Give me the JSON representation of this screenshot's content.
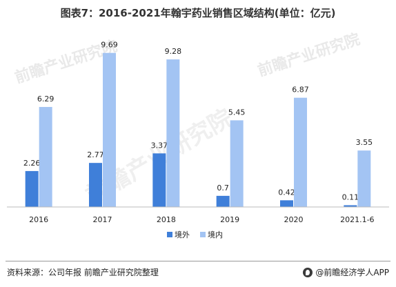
{
  "title": "图表7：2016-2021年翰宇药业销售区域结构(单位：亿元)",
  "watermark": "前瞻产业研究院",
  "watermark_big": "前瞻产业研究院",
  "footer": {
    "source": "资料来源：公司年报 前瞻产业研究院整理",
    "brand": "@前瞻经济学人APP"
  },
  "colors": {
    "series1": "#3f7fd9",
    "series2": "#a3c4f3"
  },
  "chart_data": {
    "type": "bar",
    "title": "图表7：2016-2021年翰宇药业销售区域结构(单位：亿元)",
    "categories": [
      "2016",
      "2017",
      "2018",
      "2019",
      "2020",
      "2021.1-6"
    ],
    "series": [
      {
        "name": "境外",
        "values": [
          2.26,
          2.77,
          3.37,
          0.7,
          0.42,
          0.11
        ]
      },
      {
        "name": "境内",
        "values": [
          6.29,
          9.69,
          9.28,
          5.45,
          6.87,
          3.55
        ]
      }
    ],
    "value_labels": [
      [
        "2.26",
        "2.77",
        "3.37",
        "0.7",
        "0.42",
        "0.11"
      ],
      [
        "6.29",
        "9.69",
        "9.28",
        "5.45",
        "6.87",
        "3.55"
      ]
    ],
    "ylim": [
      0,
      10.5
    ],
    "grid": false,
    "legend": "bottom"
  }
}
